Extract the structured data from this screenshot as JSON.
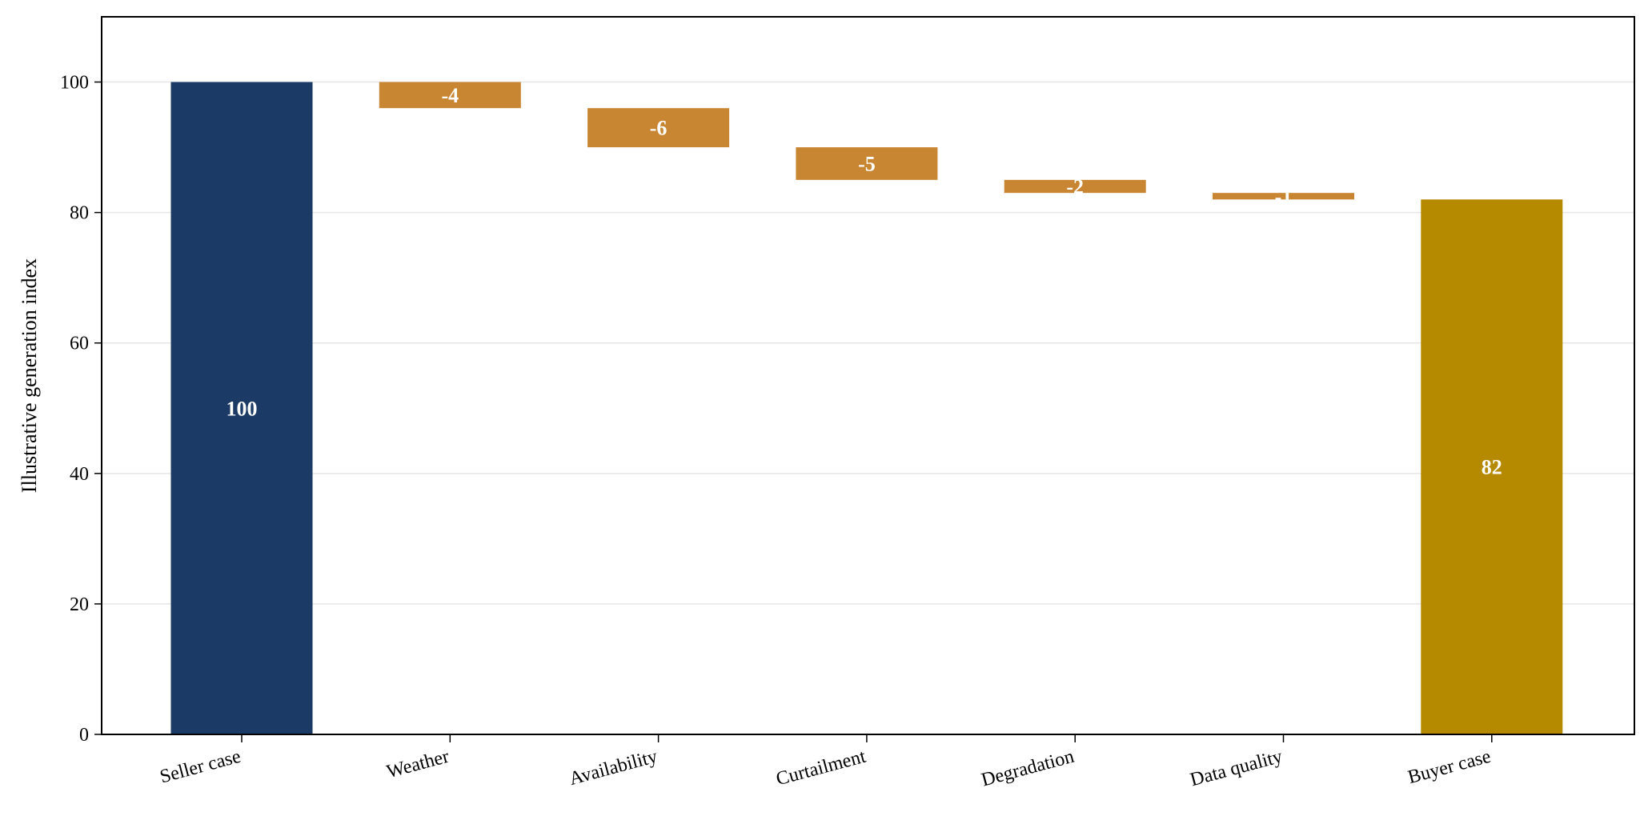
{
  "chart_data": {
    "type": "bar",
    "subtype": "waterfall",
    "title": "",
    "xlabel": "",
    "ylabel": "Illustrative generation index",
    "ylim": [
      0,
      110
    ],
    "yticks": [
      0,
      20,
      40,
      60,
      80,
      100
    ],
    "grid": "horizontal",
    "legend": "none",
    "categories": [
      "Seller case",
      "Weather",
      "Availability",
      "Curtailment",
      "Degradation",
      "Data quality",
      "Buyer case"
    ],
    "bars": [
      {
        "category": "Seller case",
        "kind": "total",
        "start": 0,
        "end": 100,
        "label": "100"
      },
      {
        "category": "Weather",
        "kind": "delta",
        "start": 100,
        "end": 96,
        "label": "-4"
      },
      {
        "category": "Availability",
        "kind": "delta",
        "start": 96,
        "end": 90,
        "label": "-6"
      },
      {
        "category": "Curtailment",
        "kind": "delta",
        "start": 90,
        "end": 85,
        "label": "-5"
      },
      {
        "category": "Degradation",
        "kind": "delta",
        "start": 85,
        "end": 83,
        "label": "-2"
      },
      {
        "category": "Data quality",
        "kind": "delta",
        "start": 83,
        "end": 82,
        "label": "-1"
      },
      {
        "category": "Buyer case",
        "kind": "total",
        "start": 0,
        "end": 82,
        "label": "82"
      }
    ],
    "colors": {
      "start_total": "#1b3a66",
      "delta": "#c98632",
      "end_total": "#b58a00",
      "grid": "#e6e6e6",
      "axis": "#000000"
    }
  }
}
